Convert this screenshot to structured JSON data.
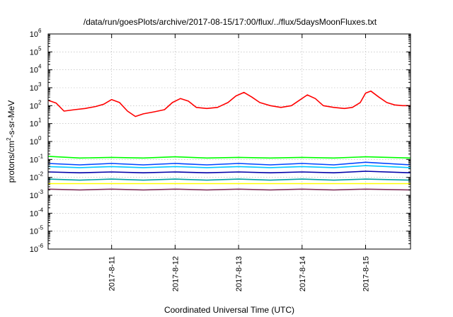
{
  "chart_data": {
    "type": "line",
    "title": "/data/run/goesPlots/archive/2017-08-15/17:00/flux/../flux/5daysMoonFluxes.txt",
    "xlabel": "Coordinated Universal Time (UTC)",
    "ylabel_parts": {
      "before": "protons/cm",
      "sup": "2",
      "after": "-s-sr-MeV"
    },
    "y_scale": "log",
    "ylim": [
      1e-06,
      1000000.0
    ],
    "xlim": [
      "2017-08-10 00:00",
      "2017-08-15 17:00"
    ],
    "grid": true,
    "legend": "none",
    "x_ticks": [
      "2017-8-11",
      "2017-8-12",
      "2017-8-13",
      "2017-8-14",
      "2017-8-15"
    ],
    "y_ticks": [
      {
        "base": "10",
        "exp": "-6",
        "value": 1e-06
      },
      {
        "base": "10",
        "exp": "-5",
        "value": 1e-05
      },
      {
        "base": "10",
        "exp": "-4",
        "value": 0.0001
      },
      {
        "base": "10",
        "exp": "-3",
        "value": 0.001
      },
      {
        "base": "10",
        "exp": "-2",
        "value": 0.01
      },
      {
        "base": "10",
        "exp": "-1",
        "value": 0.1
      },
      {
        "base": "10",
        "exp": "0",
        "value": 1
      },
      {
        "base": "10",
        "exp": "1",
        "value": 10
      },
      {
        "base": "10",
        "exp": "2",
        "value": 100
      },
      {
        "base": "10",
        "exp": "3",
        "value": 1000
      },
      {
        "base": "10",
        "exp": "4",
        "value": 10000
      },
      {
        "base": "10",
        "exp": "5",
        "value": 100000
      },
      {
        "base": "10",
        "exp": "6",
        "value": 1000000
      }
    ],
    "series": [
      {
        "color": "#ff0000",
        "points": [
          [
            "2017-08-10 00:00",
            200
          ],
          [
            "2017-08-10 03:00",
            140
          ],
          [
            "2017-08-10 06:00",
            50
          ],
          [
            "2017-08-10 10:00",
            60
          ],
          [
            "2017-08-10 14:00",
            70
          ],
          [
            "2017-08-10 18:00",
            90
          ],
          [
            "2017-08-10 21:00",
            120
          ],
          [
            "2017-08-11 00:00",
            220
          ],
          [
            "2017-08-11 03:00",
            150
          ],
          [
            "2017-08-11 06:00",
            50
          ],
          [
            "2017-08-11 09:00",
            25
          ],
          [
            "2017-08-11 12:00",
            35
          ],
          [
            "2017-08-11 16:00",
            45
          ],
          [
            "2017-08-11 20:00",
            60
          ],
          [
            "2017-08-11 23:00",
            150
          ],
          [
            "2017-08-12 02:00",
            250
          ],
          [
            "2017-08-12 05:00",
            180
          ],
          [
            "2017-08-12 08:00",
            80
          ],
          [
            "2017-08-12 12:00",
            70
          ],
          [
            "2017-08-12 16:00",
            80
          ],
          [
            "2017-08-12 20:00",
            150
          ],
          [
            "2017-08-12 23:00",
            350
          ],
          [
            "2017-08-13 02:00",
            550
          ],
          [
            "2017-08-13 05:00",
            300
          ],
          [
            "2017-08-13 08:00",
            150
          ],
          [
            "2017-08-13 12:00",
            100
          ],
          [
            "2017-08-13 16:00",
            80
          ],
          [
            "2017-08-13 20:00",
            100
          ],
          [
            "2017-08-13 23:00",
            200
          ],
          [
            "2017-08-14 02:00",
            400
          ],
          [
            "2017-08-14 05:00",
            250
          ],
          [
            "2017-08-14 08:00",
            100
          ],
          [
            "2017-08-14 12:00",
            80
          ],
          [
            "2017-08-14 16:00",
            70
          ],
          [
            "2017-08-14 19:00",
            80
          ],
          [
            "2017-08-14 22:00",
            150
          ],
          [
            "2017-08-15 00:00",
            500
          ],
          [
            "2017-08-15 02:00",
            650
          ],
          [
            "2017-08-15 05:00",
            300
          ],
          [
            "2017-08-15 08:00",
            150
          ],
          [
            "2017-08-15 11:00",
            110
          ],
          [
            "2017-08-15 14:00",
            100
          ],
          [
            "2017-08-15 17:00",
            100
          ]
        ]
      },
      {
        "color": "#00ff00",
        "points": [
          [
            "2017-08-10 00:00",
            0.15
          ],
          [
            "2017-08-10 12:00",
            0.12
          ],
          [
            "2017-08-11 00:00",
            0.13
          ],
          [
            "2017-08-11 12:00",
            0.12
          ],
          [
            "2017-08-12 00:00",
            0.14
          ],
          [
            "2017-08-12 12:00",
            0.12
          ],
          [
            "2017-08-13 00:00",
            0.13
          ],
          [
            "2017-08-13 12:00",
            0.12
          ],
          [
            "2017-08-14 00:00",
            0.13
          ],
          [
            "2017-08-14 12:00",
            0.12
          ],
          [
            "2017-08-15 00:00",
            0.14
          ],
          [
            "2017-08-15 17:00",
            0.12
          ]
        ]
      },
      {
        "color": "#00c8ff",
        "points": [
          [
            "2017-08-10 00:00",
            0.04
          ],
          [
            "2017-08-10 12:00",
            0.035
          ],
          [
            "2017-08-11 00:00",
            0.04
          ],
          [
            "2017-08-11 12:00",
            0.035
          ],
          [
            "2017-08-12 00:00",
            0.04
          ],
          [
            "2017-08-12 12:00",
            0.035
          ],
          [
            "2017-08-13 00:00",
            0.04
          ],
          [
            "2017-08-13 12:00",
            0.035
          ],
          [
            "2017-08-14 00:00",
            0.04
          ],
          [
            "2017-08-14 12:00",
            0.035
          ],
          [
            "2017-08-15 00:00",
            0.045
          ],
          [
            "2017-08-15 17:00",
            0.035
          ]
        ]
      },
      {
        "color": "#0044ff",
        "points": [
          [
            "2017-08-10 00:00",
            0.06
          ],
          [
            "2017-08-10 12:00",
            0.05
          ],
          [
            "2017-08-11 00:00",
            0.06
          ],
          [
            "2017-08-11 12:00",
            0.05
          ],
          [
            "2017-08-12 00:00",
            0.06
          ],
          [
            "2017-08-12 12:00",
            0.05
          ],
          [
            "2017-08-13 00:00",
            0.06
          ],
          [
            "2017-08-13 12:00",
            0.05
          ],
          [
            "2017-08-14 00:00",
            0.06
          ],
          [
            "2017-08-14 12:00",
            0.05
          ],
          [
            "2017-08-15 00:00",
            0.07
          ],
          [
            "2017-08-15 17:00",
            0.05
          ]
        ]
      },
      {
        "color": "#0000aa",
        "points": [
          [
            "2017-08-10 00:00",
            0.02
          ],
          [
            "2017-08-10 12:00",
            0.018
          ],
          [
            "2017-08-11 00:00",
            0.02
          ],
          [
            "2017-08-11 12:00",
            0.018
          ],
          [
            "2017-08-12 00:00",
            0.02
          ],
          [
            "2017-08-12 12:00",
            0.018
          ],
          [
            "2017-08-13 00:00",
            0.02
          ],
          [
            "2017-08-13 12:00",
            0.018
          ],
          [
            "2017-08-14 00:00",
            0.02
          ],
          [
            "2017-08-14 12:00",
            0.018
          ],
          [
            "2017-08-15 00:00",
            0.022
          ],
          [
            "2017-08-15 17:00",
            0.018
          ]
        ]
      },
      {
        "color": "#00a0a0",
        "points": [
          [
            "2017-08-10 00:00",
            0.008
          ],
          [
            "2017-08-10 12:00",
            0.007
          ],
          [
            "2017-08-11 00:00",
            0.008
          ],
          [
            "2017-08-11 12:00",
            0.007
          ],
          [
            "2017-08-12 00:00",
            0.008
          ],
          [
            "2017-08-12 12:00",
            0.007
          ],
          [
            "2017-08-13 00:00",
            0.008
          ],
          [
            "2017-08-13 12:00",
            0.007
          ],
          [
            "2017-08-14 00:00",
            0.008
          ],
          [
            "2017-08-14 12:00",
            0.007
          ],
          [
            "2017-08-15 00:00",
            0.008
          ],
          [
            "2017-08-15 17:00",
            0.007
          ]
        ]
      },
      {
        "color": "#ffff00",
        "points": [
          [
            "2017-08-10 00:00",
            0.0045
          ],
          [
            "2017-08-11 00:00",
            0.0045
          ],
          [
            "2017-08-12 00:00",
            0.0045
          ],
          [
            "2017-08-13 00:00",
            0.0045
          ],
          [
            "2017-08-14 00:00",
            0.0045
          ],
          [
            "2017-08-15 00:00",
            0.0045
          ],
          [
            "2017-08-15 17:00",
            0.0045
          ]
        ]
      },
      {
        "color": "#80305a",
        "points": [
          [
            "2017-08-10 00:00",
            0.0022
          ],
          [
            "2017-08-10 12:00",
            0.002
          ],
          [
            "2017-08-11 00:00",
            0.0022
          ],
          [
            "2017-08-11 12:00",
            0.002
          ],
          [
            "2017-08-12 00:00",
            0.0022
          ],
          [
            "2017-08-12 12:00",
            0.002
          ],
          [
            "2017-08-13 00:00",
            0.0022
          ],
          [
            "2017-08-13 12:00",
            0.002
          ],
          [
            "2017-08-14 00:00",
            0.0022
          ],
          [
            "2017-08-14 12:00",
            0.002
          ],
          [
            "2017-08-15 00:00",
            0.0022
          ],
          [
            "2017-08-15 17:00",
            0.002
          ]
        ]
      }
    ]
  }
}
